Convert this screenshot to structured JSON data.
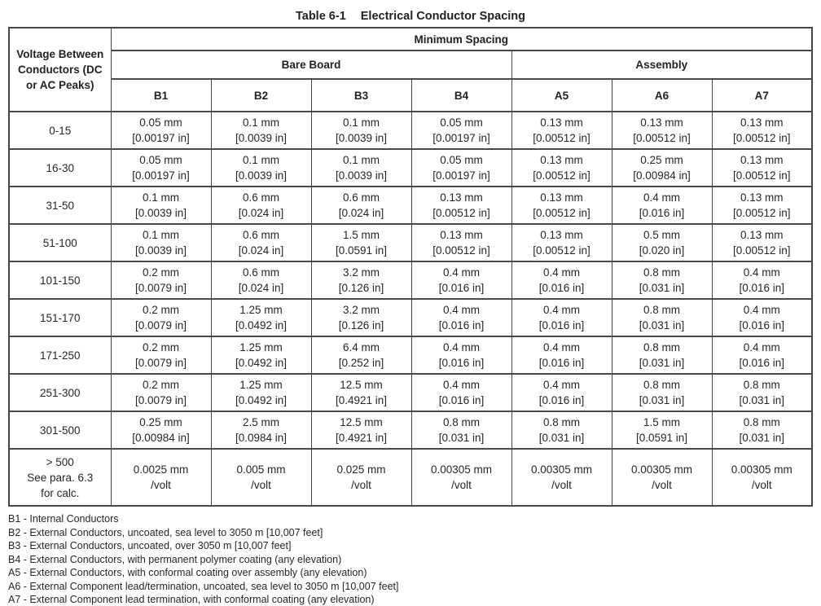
{
  "title": {
    "label": "Table 6-1",
    "text": "Electrical Conductor Spacing"
  },
  "table": {
    "corner_header": "Voltage Between Conductors (DC or AC Peaks)",
    "group_header": "Minimum Spacing",
    "subgroups": {
      "bare_board": "Bare Board",
      "assembly": "Assembly"
    },
    "column_headers": [
      "B1",
      "B2",
      "B3",
      "B4",
      "A5",
      "A6",
      "A7"
    ],
    "rows": [
      {
        "voltage": [
          "0-15"
        ],
        "cells": [
          [
            "0.05 mm",
            "[0.00197 in]"
          ],
          [
            "0.1 mm",
            "[0.0039 in]"
          ],
          [
            "0.1 mm",
            "[0.0039 in]"
          ],
          [
            "0.05 mm",
            "[0.00197 in]"
          ],
          [
            "0.13 mm",
            "[0.00512 in]"
          ],
          [
            "0.13 mm",
            "[0.00512 in]"
          ],
          [
            "0.13 mm",
            "[0.00512 in]"
          ]
        ]
      },
      {
        "voltage": [
          "16-30"
        ],
        "cells": [
          [
            "0.05 mm",
            "[0.00197 in]"
          ],
          [
            "0.1 mm",
            "[0.0039 in]"
          ],
          [
            "0.1 mm",
            "[0.0039 in]"
          ],
          [
            "0.05 mm",
            "[0.00197 in]"
          ],
          [
            "0.13 mm",
            "[0.00512 in]"
          ],
          [
            "0.25 mm",
            "[0.00984 in]"
          ],
          [
            "0.13 mm",
            "[0.00512 in]"
          ]
        ]
      },
      {
        "voltage": [
          "31-50"
        ],
        "cells": [
          [
            "0.1 mm",
            "[0.0039 in]"
          ],
          [
            "0.6 mm",
            "[0.024 in]"
          ],
          [
            "0.6 mm",
            "[0.024 in]"
          ],
          [
            "0.13 mm",
            "[0.00512 in]"
          ],
          [
            "0.13 mm",
            "[0.00512 in]"
          ],
          [
            "0.4 mm",
            "[0.016 in]"
          ],
          [
            "0.13 mm",
            "[0.00512 in]"
          ]
        ]
      },
      {
        "voltage": [
          "51-100"
        ],
        "cells": [
          [
            "0.1 mm",
            "[0.0039 in]"
          ],
          [
            "0.6 mm",
            "[0.024 in]"
          ],
          [
            "1.5 mm",
            "[0.0591 in]"
          ],
          [
            "0.13 mm",
            "[0.00512 in]"
          ],
          [
            "0.13 mm",
            "[0.00512 in]"
          ],
          [
            "0.5 mm",
            "[0.020 in]"
          ],
          [
            "0.13 mm",
            "[0.00512 in]"
          ]
        ]
      },
      {
        "voltage": [
          "101-150"
        ],
        "cells": [
          [
            "0.2 mm",
            "[0.0079 in]"
          ],
          [
            "0.6 mm",
            "[0.024 in]"
          ],
          [
            "3.2 mm",
            "[0.126 in]"
          ],
          [
            "0.4 mm",
            "[0.016 in]"
          ],
          [
            "0.4 mm",
            "[0.016 in]"
          ],
          [
            "0.8 mm",
            "[0.031 in]"
          ],
          [
            "0.4 mm",
            "[0.016 in]"
          ]
        ]
      },
      {
        "voltage": [
          "151-170"
        ],
        "cells": [
          [
            "0.2 mm",
            "[0.0079 in]"
          ],
          [
            "1.25 mm",
            "[0.0492 in]"
          ],
          [
            "3.2 mm",
            "[0.126 in]"
          ],
          [
            "0.4 mm",
            "[0.016 in]"
          ],
          [
            "0.4 mm",
            "[0.016 in]"
          ],
          [
            "0.8 mm",
            "[0.031 in]"
          ],
          [
            "0.4 mm",
            "[0.016 in]"
          ]
        ]
      },
      {
        "voltage": [
          "171-250"
        ],
        "cells": [
          [
            "0.2 mm",
            "[0.0079 in]"
          ],
          [
            "1.25 mm",
            "[0.0492 in]"
          ],
          [
            "6.4 mm",
            "[0.252 in]"
          ],
          [
            "0.4 mm",
            "[0.016 in]"
          ],
          [
            "0.4 mm",
            "[0.016 in]"
          ],
          [
            "0.8 mm",
            "[0.031 in]"
          ],
          [
            "0.4 mm",
            "[0.016 in]"
          ]
        ]
      },
      {
        "voltage": [
          "251-300"
        ],
        "cells": [
          [
            "0.2 mm",
            "[0.0079 in]"
          ],
          [
            "1.25 mm",
            "[0.0492 in]"
          ],
          [
            "12.5 mm",
            "[0.4921 in]"
          ],
          [
            "0.4 mm",
            "[0.016 in]"
          ],
          [
            "0.4 mm",
            "[0.016 in]"
          ],
          [
            "0.8 mm",
            "[0.031 in]"
          ],
          [
            "0.8 mm",
            "[0.031 in]"
          ]
        ]
      },
      {
        "voltage": [
          "301-500"
        ],
        "cells": [
          [
            "0.25 mm",
            "[0.00984 in]"
          ],
          [
            "2.5 mm",
            "[0.0984 in]"
          ],
          [
            "12.5 mm",
            "[0.4921 in]"
          ],
          [
            "0.8 mm",
            "[0.031 in]"
          ],
          [
            "0.8 mm",
            "[0.031 in]"
          ],
          [
            "1.5 mm",
            "[0.0591 in]"
          ],
          [
            "0.8 mm",
            "[0.031 in]"
          ]
        ]
      },
      {
        "voltage": [
          "> 500",
          "See para. 6.3",
          "for calc."
        ],
        "cells": [
          [
            "0.0025 mm",
            "/volt"
          ],
          [
            "0.005 mm",
            "/volt"
          ],
          [
            "0.025 mm",
            "/volt"
          ],
          [
            "0.00305 mm",
            "/volt"
          ],
          [
            "0.00305 mm",
            "/volt"
          ],
          [
            "0.00305 mm",
            "/volt"
          ],
          [
            "0.00305 mm",
            "/volt"
          ]
        ]
      }
    ]
  },
  "notes": [
    "B1 - Internal Conductors",
    "B2 - External Conductors, uncoated, sea level to 3050 m [10,007 feet]",
    "B3 - External Conductors, uncoated, over 3050 m [10,007 feet]",
    "B4 - External Conductors, with permanent polymer coating (any elevation)",
    "A5 - External Conductors, with conformal coating over assembly (any elevation)",
    "A6 - External Component lead/termination, uncoated, sea level to 3050 m [10,007 feet]",
    "A7 - External Component lead termination, with conformal coating (any elevation)"
  ]
}
